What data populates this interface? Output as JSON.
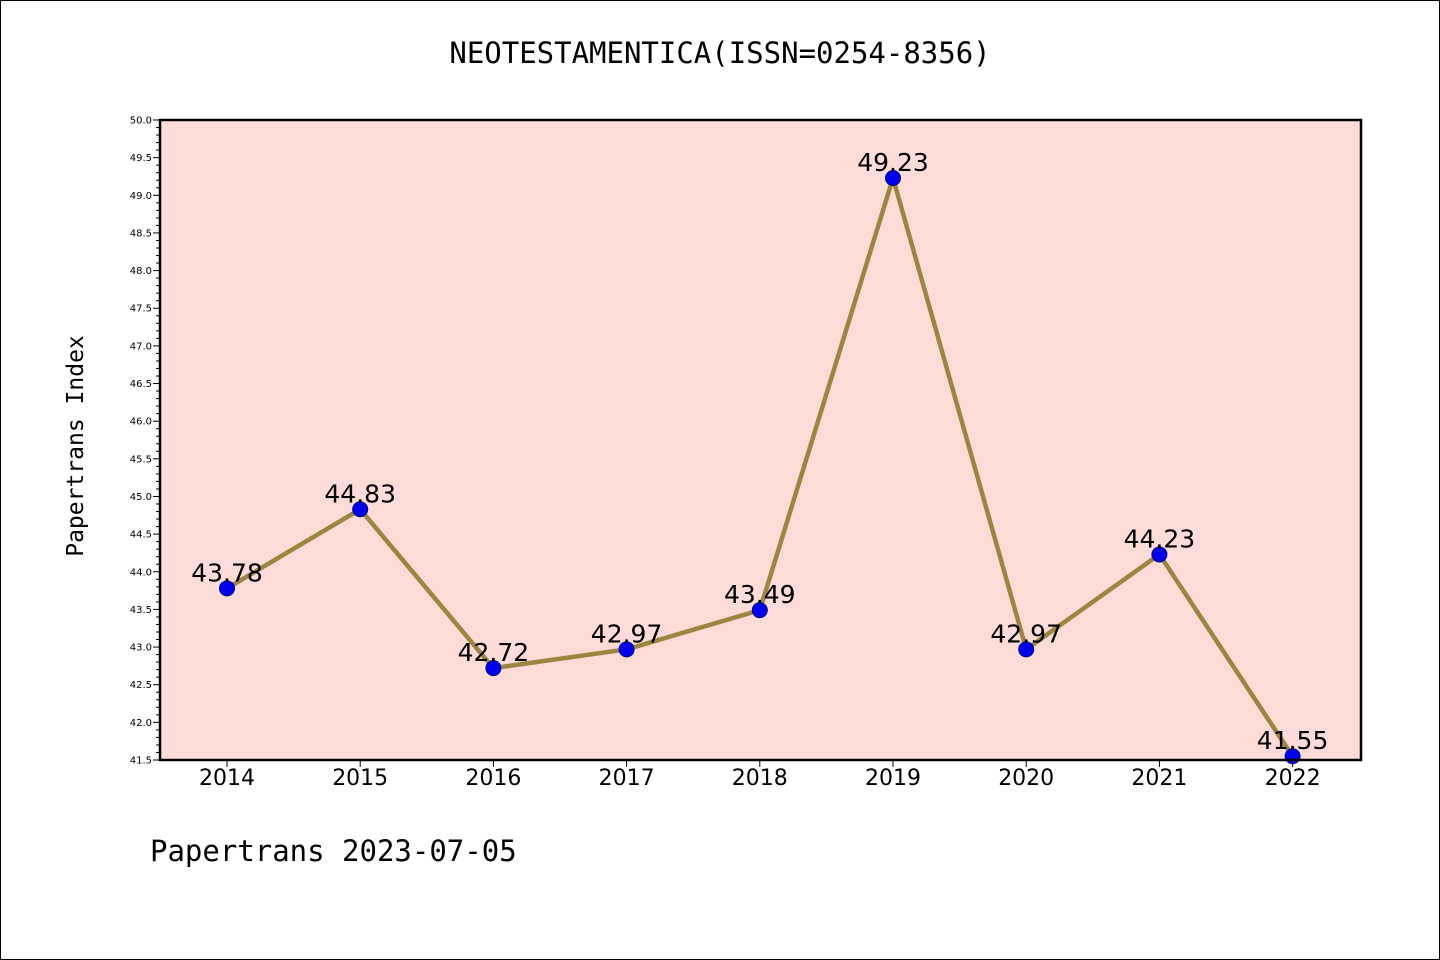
{
  "title": "NEOTESTAMENTICA(ISSN=0254-8356)",
  "footer": "Papertrans 2023-07-05",
  "colors": {
    "plot_background": "#fddcd8",
    "line": "#9a8640",
    "marker": "#0000ee",
    "marker_edge": "#00008b"
  },
  "chart_data": {
    "type": "line",
    "title": "NEOTESTAMENTICA(ISSN=0254-8356)",
    "xlabel": "",
    "ylabel": "Papertrans Index",
    "categories": [
      "2014",
      "2015",
      "2016",
      "2017",
      "2018",
      "2019",
      "2020",
      "2021",
      "2022"
    ],
    "series": [
      {
        "values": [
          43.78,
          44.83,
          42.72,
          42.97,
          43.49,
          49.23,
          42.97,
          44.23,
          41.55
        ]
      }
    ],
    "data_labels": [
      "43.78",
      "44.83",
      "42.72",
      "42.97",
      "43.49",
      "49.23",
      "42.97",
      "44.23",
      "41.55"
    ],
    "ylim": [
      41.5,
      50.0
    ],
    "yticks": [
      "41.5",
      "42.0",
      "42.5",
      "43.0",
      "43.5",
      "44.0",
      "44.5",
      "45.0",
      "45.5",
      "46.0",
      "46.5",
      "47.0",
      "47.5",
      "48.0",
      "48.5",
      "49.0",
      "49.5",
      "50.0"
    ],
    "grid": false,
    "legend": "none"
  }
}
